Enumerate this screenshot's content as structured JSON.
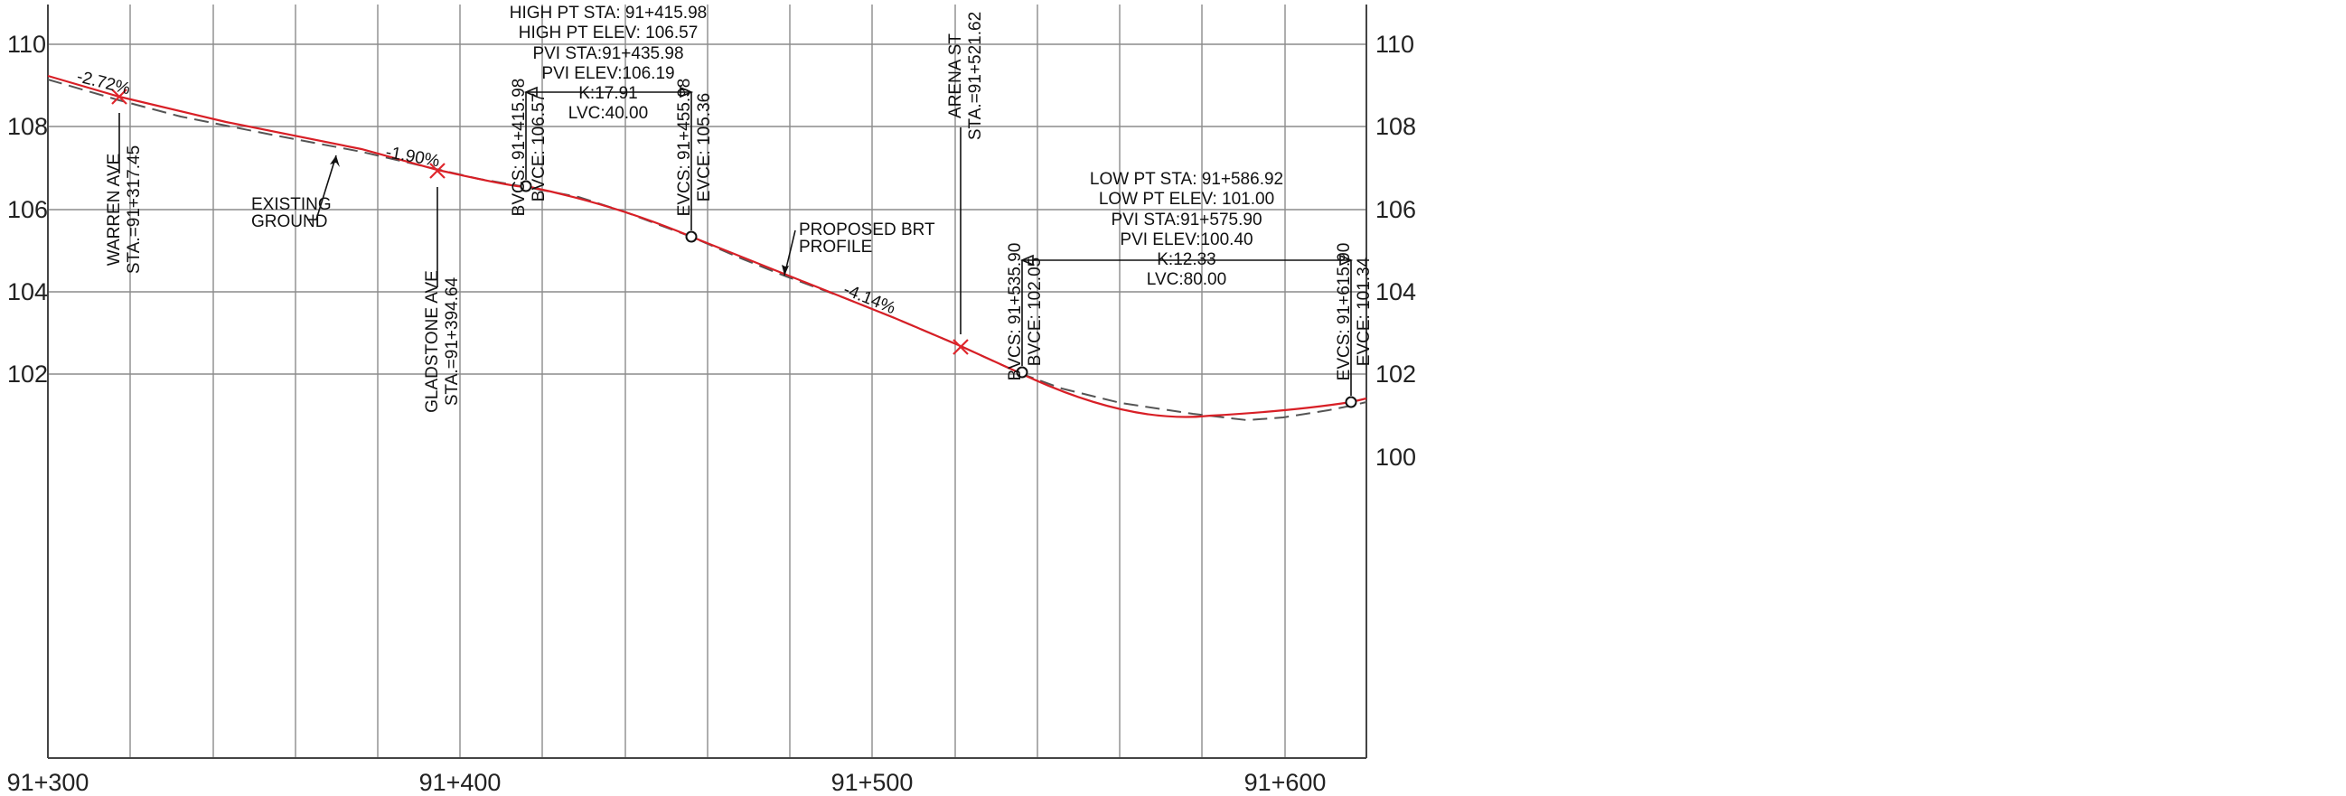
{
  "axes": {
    "y_ticks_left": [
      "110",
      "108",
      "106",
      "104",
      "102"
    ],
    "y_ticks_right": [
      "110",
      "108",
      "106",
      "104",
      "102",
      "100"
    ],
    "x_ticks": [
      "91+300",
      "91+400",
      "91+500",
      "91+600"
    ]
  },
  "stations": {
    "warren": {
      "name": "WARREN AVE",
      "sta": "STA.=91+317.45"
    },
    "gladstone": {
      "name": "GLADSTONE AVE",
      "sta": "STA.=91+394.64"
    },
    "arena": {
      "name": "ARENA ST",
      "sta": "STA.=91+521.62"
    }
  },
  "grades": {
    "g1": "-2.72%",
    "g2": "-1.90%",
    "g3": "-4.14%"
  },
  "callouts": {
    "existing_ground": [
      "EXISTING",
      "GROUND"
    ],
    "proposed_brt": [
      "PROPOSED BRT",
      "PROFILE"
    ]
  },
  "curve1": {
    "info": [
      "HIGH PT STA: 91+415.98",
      "HIGH PT ELEV: 106.57",
      "PVI STA:91+435.98",
      "PVI ELEV:106.19",
      "K:17.91",
      "LVC:40.00"
    ],
    "bvc": [
      "BVCS: 91+415.98",
      "BVCE: 106.57"
    ],
    "evc": [
      "EVCS: 91+455.98",
      "EVCE: 105.36"
    ]
  },
  "curve2": {
    "info": [
      "LOW PT STA: 91+586.92",
      "LOW PT ELEV: 101.00",
      "PVI STA:91+575.90",
      "PVI ELEV:100.40",
      "K:12.33",
      "LVC:80.00"
    ],
    "bvc": [
      "BVCS: 91+535.90",
      "BVCE: 102.05"
    ],
    "evc": [
      "EVCS: 91+615.90",
      "EVCE: 101.34"
    ]
  },
  "colors": {
    "proposed_profile": "#d81f26",
    "existing_ground": "#555555",
    "grid": "#8c8c8c"
  }
}
